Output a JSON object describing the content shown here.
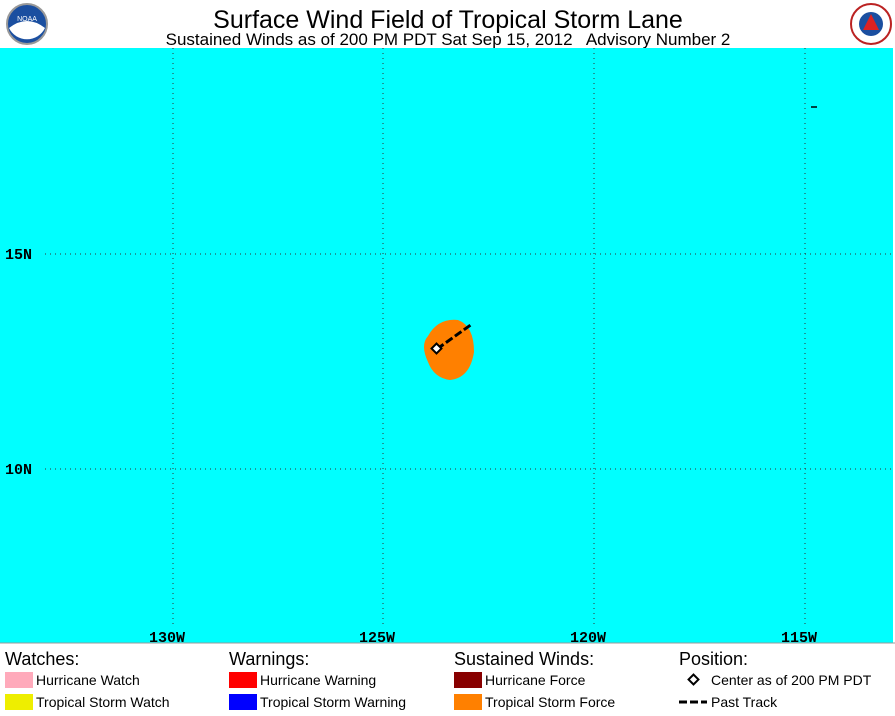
{
  "header": {
    "title": "Surface Wind Field of Tropical Storm Lane",
    "subtitle": "Sustained Winds as of 200 PM PDT Sat Sep 15, 2012   Advisory Number 2"
  },
  "map": {
    "lat_labels": [
      "15N",
      "10N"
    ],
    "lon_labels": [
      "130W",
      "125W",
      "120W",
      "115W"
    ]
  },
  "legend": [
    {
      "heading": "Watches:",
      "items": [
        "Hurricane Watch",
        "Tropical Storm Watch"
      ]
    },
    {
      "heading": "Warnings:",
      "items": [
        "Hurricane Warning",
        "Tropical Storm Warning"
      ]
    },
    {
      "heading": "Sustained Winds:",
      "items": [
        "Hurricane Force",
        "Tropical Storm Force"
      ]
    },
    {
      "heading": "Position:",
      "items": [
        "Center as of 200 PM PDT",
        "Past Track"
      ]
    }
  ]
}
